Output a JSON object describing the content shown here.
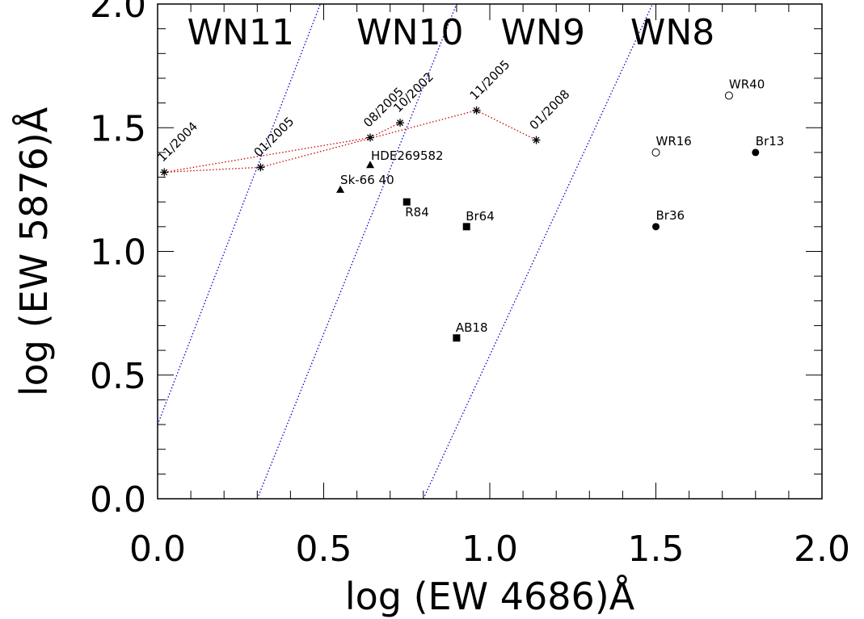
{
  "chart_data": {
    "type": "scatter",
    "xlabel": "log (EW 4686)Å",
    "ylabel": "log (EW 5876)Å",
    "xlim": [
      0.0,
      2.0
    ],
    "ylim": [
      0.0,
      2.0
    ],
    "x_ticks": [
      "0.0",
      "0.5",
      "1.0",
      "1.5",
      "2.0"
    ],
    "y_ticks": [
      "0.0",
      "0.5",
      "1.0",
      "1.5",
      "2.0"
    ],
    "region_labels": [
      {
        "text": "WN11",
        "x": 0.25
      },
      {
        "text": "WN10",
        "x": 0.76
      },
      {
        "text": "WN9",
        "x": 1.16
      },
      {
        "text": "WN8",
        "x": 1.55
      }
    ],
    "boundary_lines": [
      {
        "x0": 0.0,
        "y0": 0.3,
        "x1": 0.49,
        "y1": 2.0
      },
      {
        "x0": 0.3,
        "y0": 0.0,
        "x1": 0.9,
        "y1": 2.0
      },
      {
        "x0": 0.8,
        "y0": 0.0,
        "x1": 1.49,
        "y1": 2.0
      }
    ],
    "boundary_color": "#0000cc",
    "track_color": "#cc0000",
    "epoch_track": [
      {
        "label": "11/2004",
        "x": 0.02,
        "y": 1.32
      },
      {
        "label": "08/2005",
        "x": 0.64,
        "y": 1.46
      },
      {
        "label": "10/2002",
        "x": 0.73,
        "y": 1.52
      },
      {
        "label": "01/2005",
        "x": 0.31,
        "y": 1.34
      },
      {
        "label": "11/2005",
        "x": 0.96,
        "y": 1.57
      },
      {
        "label": "01/2008",
        "x": 1.14,
        "y": 1.45
      }
    ],
    "stars": [
      {
        "label": "HDE269582",
        "x": 0.64,
        "y": 1.35,
        "marker": "triangle"
      },
      {
        "label": "Sk-66 40",
        "x": 0.55,
        "y": 1.25,
        "marker": "triangle"
      },
      {
        "label": "R84",
        "x": 0.75,
        "y": 1.2,
        "marker": "square"
      },
      {
        "label": "Br64",
        "x": 0.93,
        "y": 1.1,
        "marker": "square"
      },
      {
        "label": "AB18",
        "x": 0.9,
        "y": 0.65,
        "marker": "square"
      },
      {
        "label": "WR40",
        "x": 1.72,
        "y": 1.63,
        "marker": "open-circle"
      },
      {
        "label": "WR16",
        "x": 1.5,
        "y": 1.4,
        "marker": "open-circle"
      },
      {
        "label": "Br13",
        "x": 1.8,
        "y": 1.4,
        "marker": "filled-circle"
      },
      {
        "label": "Br36",
        "x": 1.5,
        "y": 1.1,
        "marker": "filled-circle"
      }
    ]
  }
}
